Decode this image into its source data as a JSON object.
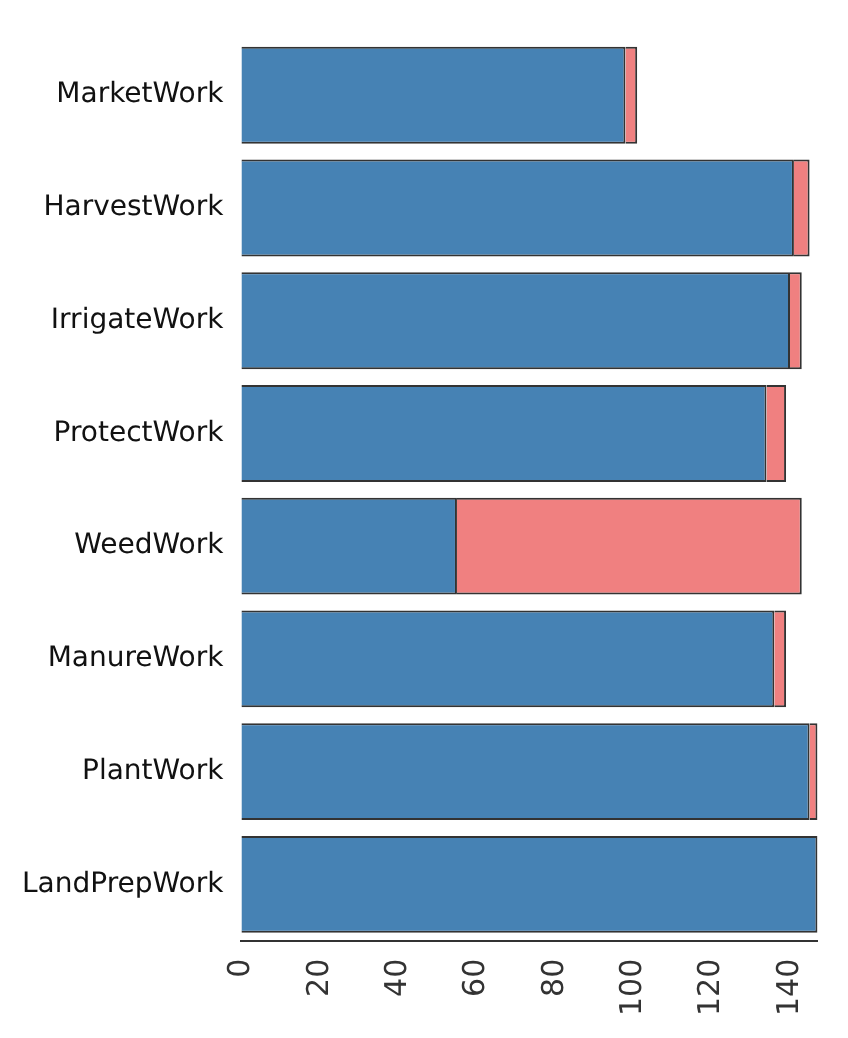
{
  "chart_data": {
    "type": "bar",
    "orientation": "horizontal",
    "stacked": true,
    "categories": [
      "MarketWork",
      "HarvestWork",
      "IrrigateWork",
      "ProtectWork",
      "WeedWork",
      "ManureWork",
      "PlantWork",
      "LandPrepWork"
    ],
    "series": [
      {
        "color": "#4682b4",
        "values": [
          98,
          141,
          140,
          134,
          55,
          136,
          145,
          147
        ]
      },
      {
        "color": "#f08080",
        "values": [
          3,
          4,
          3,
          5,
          88,
          3,
          2,
          0
        ]
      }
    ],
    "xlim": [
      0,
      147
    ],
    "xticks": [
      0,
      20,
      40,
      60,
      80,
      100,
      120,
      140
    ],
    "grid": false,
    "legend": false
  }
}
